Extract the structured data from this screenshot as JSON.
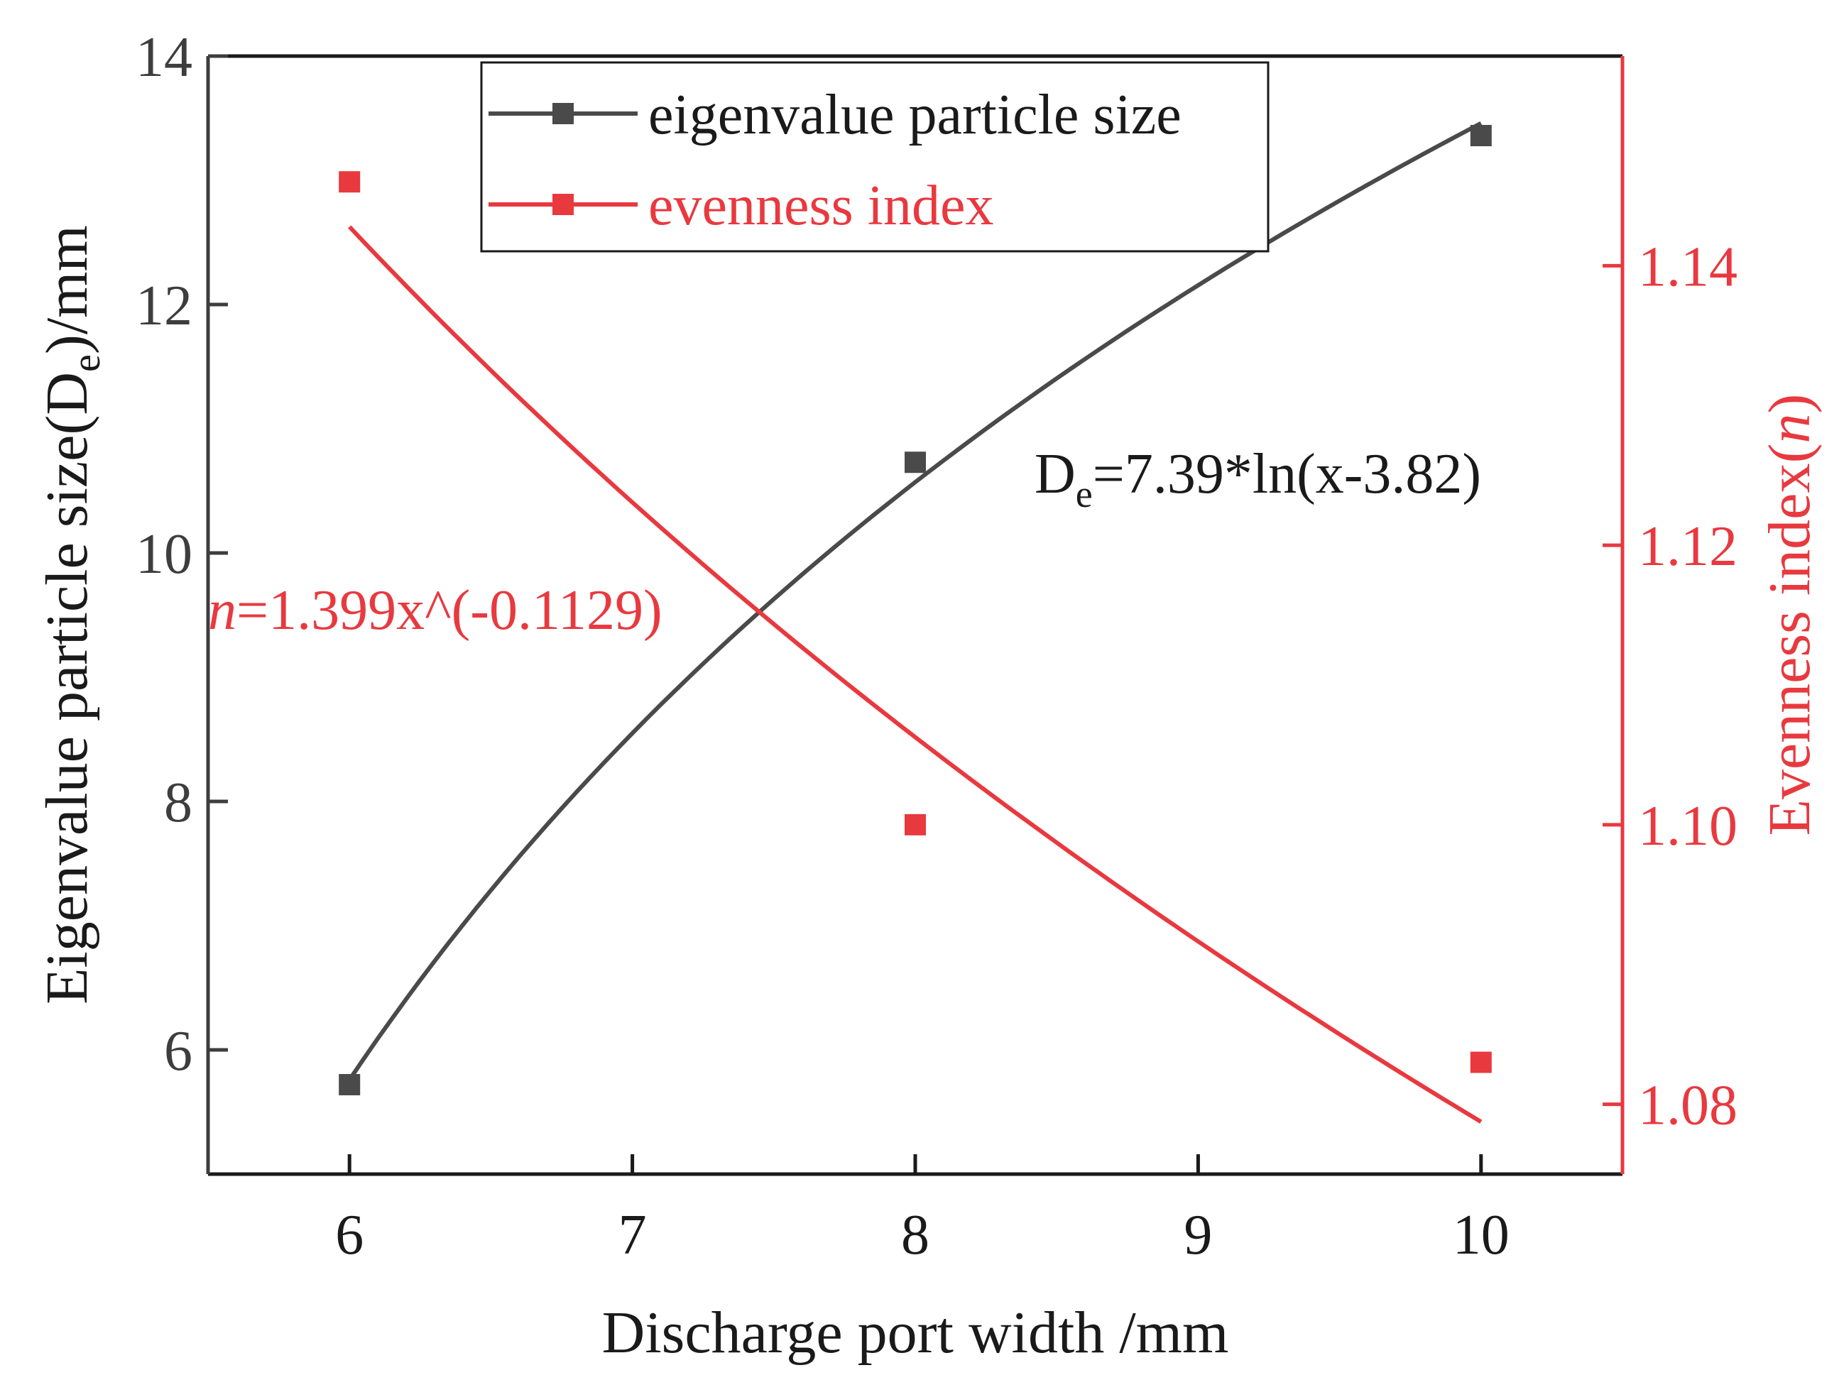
{
  "chart_data": {
    "type": "line",
    "x": [
      6,
      8,
      10
    ],
    "xlim": [
      5.5,
      10.5
    ],
    "xticks": [
      6,
      7,
      8,
      9,
      10
    ],
    "xlabel": "Discharge port width /mm",
    "ylabel_left": {
      "main": "Eigenvalue particle size(D",
      "sub": "e",
      "tail": ")/mm"
    },
    "ylim_left": [
      5,
      14
    ],
    "yticks_left": [
      6,
      8,
      10,
      12,
      14
    ],
    "ylabel_right": {
      "main": "Evenness index(",
      "italic": "n",
      "tail": ")"
    },
    "ylim_right": [
      1.075,
      1.155
    ],
    "yticks_right": [
      1.08,
      1.1,
      1.12,
      1.14
    ],
    "ytick_labels_right": [
      "1.08",
      "1.10",
      "1.12",
      "1.14"
    ],
    "grid": false,
    "legend_position": "top-center",
    "series": [
      {
        "name": "eigenvalue particle size",
        "axis": "left",
        "color": "#4a4a4a",
        "marker": "square",
        "values": [
          5.72,
          10.73,
          13.36
        ],
        "fit": {
          "kind": "log",
          "a": 7.39,
          "b": 3.82
        }
      },
      {
        "name": "evenness index",
        "axis": "right",
        "color": "#e8393f",
        "marker": "square",
        "values": [
          1.146,
          1.1,
          1.083
        ],
        "fit": {
          "kind": "power",
          "a": 1.399,
          "b": -0.1129
        }
      }
    ],
    "annotations": [
      {
        "series": 0,
        "prefix": "D",
        "sub": "e",
        "text": "=7.39*ln(x-3.82)"
      },
      {
        "series": 1,
        "italic": "n",
        "text": "=1.399x^(-0.1129)"
      }
    ]
  }
}
